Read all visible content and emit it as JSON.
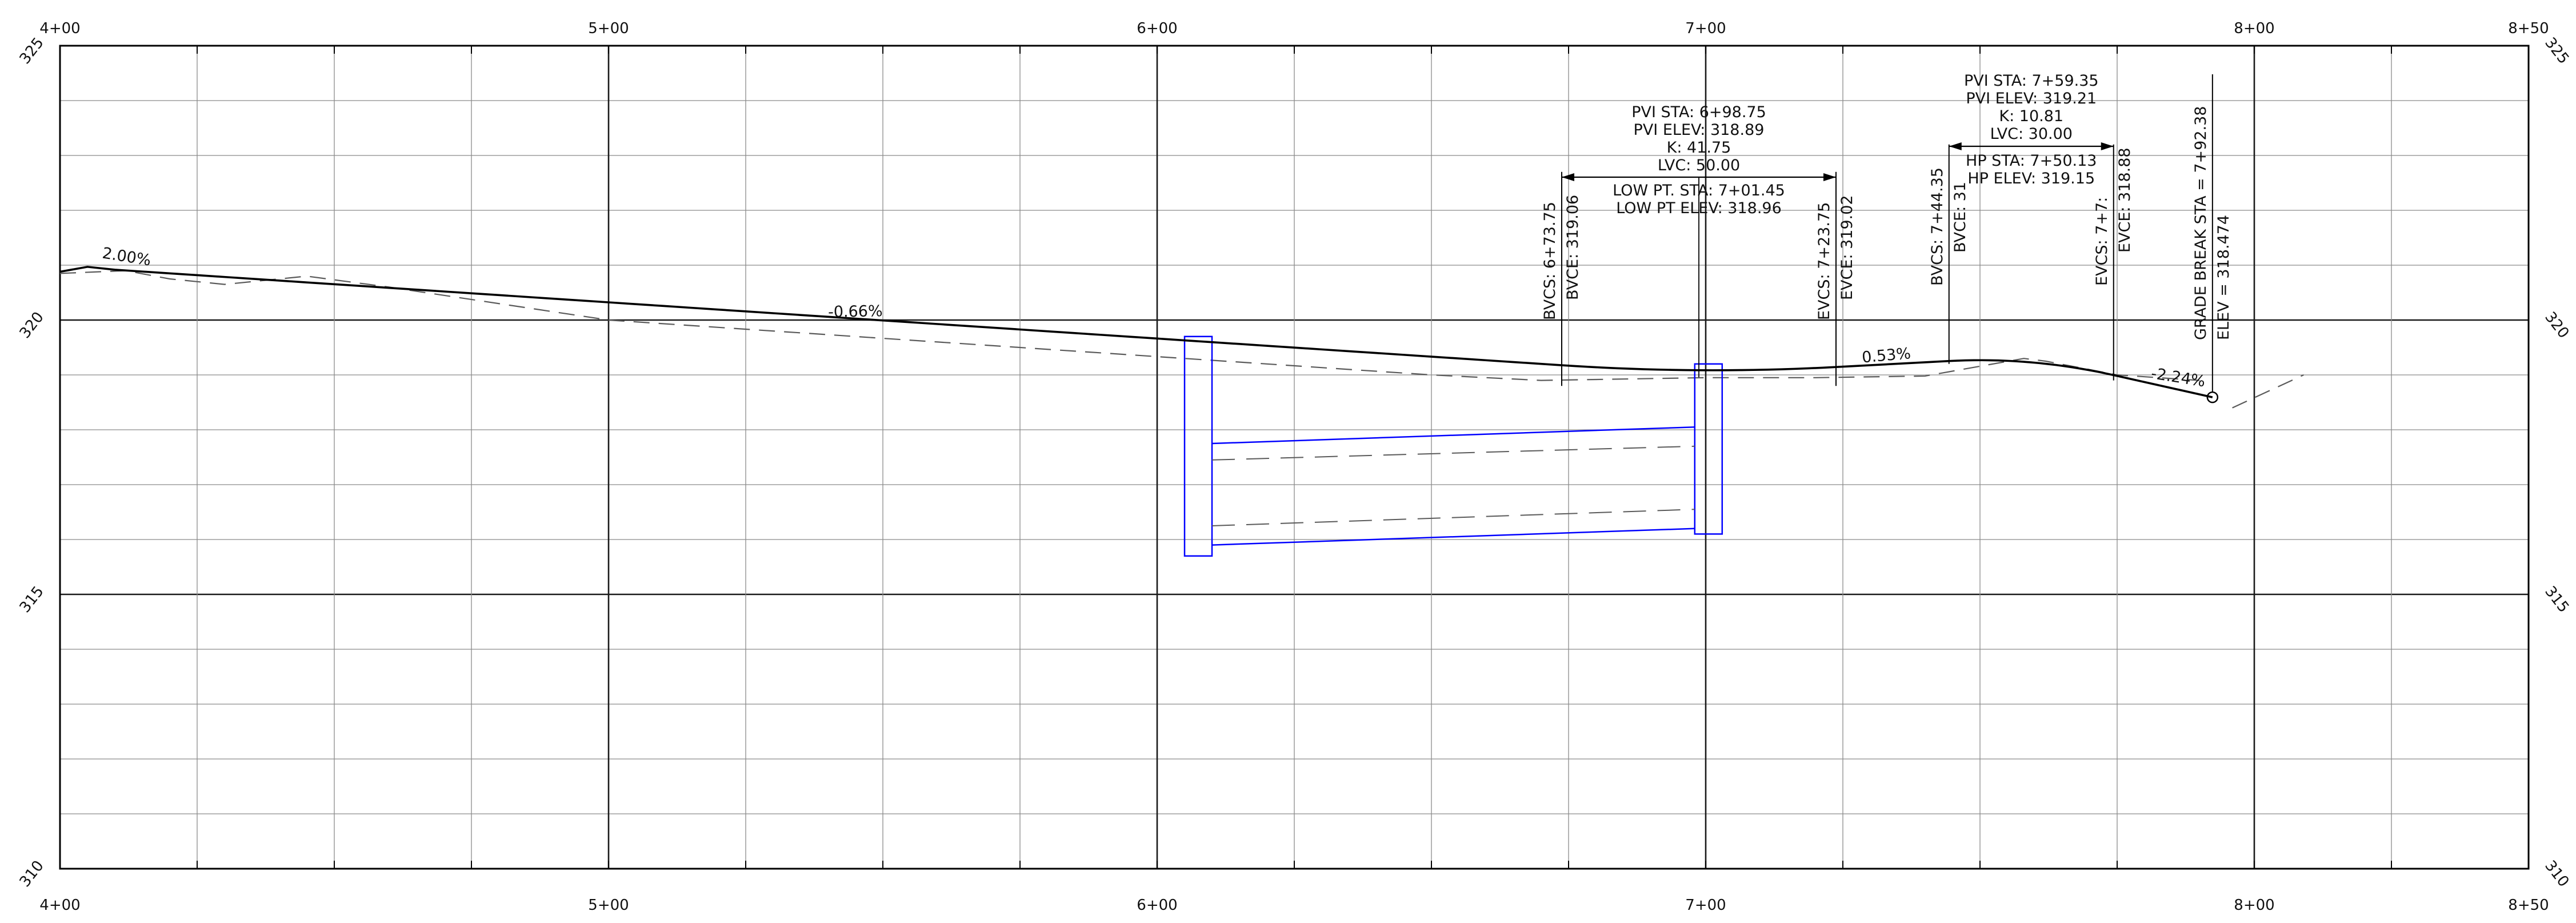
{
  "drawing": {
    "x_ticks": [
      "4+00",
      "5+00",
      "6+00",
      "7+00",
      "8+00",
      "8+50"
    ],
    "y_ticks": [
      "310",
      "315",
      "320",
      "325"
    ],
    "axes": {
      "station_range": [
        400,
        850
      ],
      "elevation_range": [
        310,
        325
      ],
      "major_station_step": 100,
      "minor_station_step": 25,
      "minor_elev_step": 1
    },
    "colors": {
      "profile": "#000000",
      "grid_major": "#1a1a1a",
      "grid_minor": "#8a8a8a",
      "existing": "#5a5a5a",
      "structure": "#0000ff"
    },
    "grades": [
      {
        "label": "2.00%",
        "station": 412,
        "elev": 321.0
      },
      {
        "label": "-0.66%",
        "station": 545,
        "elev": 320.0
      },
      {
        "label": "0.53%",
        "station": 733,
        "elev": 319.2
      },
      {
        "label": "-2.24%",
        "station": 786,
        "elev": 318.8
      }
    ],
    "curve1": {
      "pvi_sta": "PVI STA:  6+98.75",
      "pvi_elev": "PVI ELEV:  318.89",
      "k": "K:  41.75",
      "lvc": "LVC:  50.00",
      "low_pt_sta": "LOW PT. STA:  7+01.45",
      "low_pt_elev": "LOW PT ELEV:  318.96",
      "bvcs": "BVCS:  6+73.75",
      "bvce": "BVCE:  319.06",
      "evcs": "EVCS:  7+23.75",
      "evce": "EVCE:  319.02",
      "bvc_station": 673.75,
      "evc_station": 723.75,
      "pvi_station": 698.75
    },
    "curve2": {
      "pvi_sta": "PVI STA:  7+59.35",
      "pvi_elev": "PVI ELEV:  319.21",
      "k": "K:  10.81",
      "lvc": "LVC:  30.00",
      "hp_sta": "HP STA:  7+50.13",
      "hp_elev": "HP ELEV:  319.15",
      "bvcs": "BVCS:  7+44.35",
      "bvce": "BVCE:  31",
      "evcs": "EVCS:  7+7:",
      "evce": "EVCE:  318.88",
      "bvc_station": 744.35,
      "evc_station": 774.35,
      "pvi_station": 759.35
    },
    "grade_break": {
      "sta": "GRADE BREAK STA = 7+92.38",
      "elev": "ELEV =  318.474",
      "station": 792.38,
      "elevation": 318.474
    }
  }
}
